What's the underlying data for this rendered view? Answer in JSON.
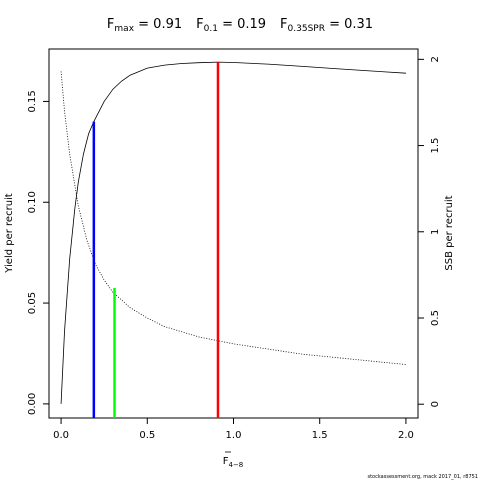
{
  "title": {
    "fmax": {
      "base": "F",
      "sub": "max",
      "rest": " = 0.91"
    },
    "f01": {
      "base": "F",
      "sub": "0.1",
      "rest": " = 0.19"
    },
    "f035": {
      "base": "F",
      "sub": "0.35SPR",
      "rest": " = 0.31"
    }
  },
  "footer": "stockassessment.org, mack  2017_01, r8751",
  "chart_data": {
    "type": "line",
    "xlabel": {
      "base": "F",
      "sub": "4−8"
    },
    "ylabel": "Yield per recruit",
    "y2label": "SSB per recruit",
    "xlim": [
      -0.07,
      2.07
    ],
    "ylim": [
      -0.007,
      0.176
    ],
    "y2lim": [
      -0.08,
      2.06
    ],
    "x_ticks": [
      0,
      0.5,
      1,
      1.5,
      2
    ],
    "x_tick_labels": [
      "0.0",
      "0.5",
      "1.0",
      "1.5",
      "2.0"
    ],
    "y_ticks": [
      0,
      0.05,
      0.1,
      0.15
    ],
    "y_tick_labels": [
      "0.00",
      "0.05",
      "0.10",
      "0.15"
    ],
    "y2_ticks": [
      0,
      0.5,
      1,
      1.5,
      2
    ],
    "y2_tick_labels": [
      "0",
      "0.5",
      "1",
      "1.5",
      "2"
    ],
    "series": [
      {
        "axis": "left",
        "style": "solid",
        "x": [
          0,
          0.02,
          0.05,
          0.08,
          0.1,
          0.13,
          0.16,
          0.19,
          0.25,
          0.3,
          0.35,
          0.4,
          0.5,
          0.6,
          0.7,
          0.8,
          0.91,
          1.0,
          1.2,
          1.4,
          1.6,
          1.8,
          2.0
        ],
        "y": [
          0,
          0.036,
          0.072,
          0.097,
          0.11,
          0.124,
          0.134,
          0.14,
          0.15,
          0.156,
          0.16,
          0.163,
          0.1665,
          0.168,
          0.1688,
          0.1692,
          0.1695,
          0.1693,
          0.1685,
          0.1674,
          0.1662,
          0.1651,
          0.164
        ]
      },
      {
        "axis": "right",
        "style": "dotted",
        "x": [
          0,
          0.02,
          0.05,
          0.1,
          0.15,
          0.2,
          0.25,
          0.3,
          0.4,
          0.5,
          0.6,
          0.7,
          0.8,
          0.9,
          1.0,
          1.2,
          1.4,
          1.6,
          1.8,
          2.0
        ],
        "y": [
          1.93,
          1.7,
          1.45,
          1.15,
          0.95,
          0.81,
          0.72,
          0.65,
          0.56,
          0.5,
          0.45,
          0.42,
          0.39,
          0.37,
          0.35,
          0.32,
          0.29,
          0.27,
          0.25,
          0.23
        ]
      }
    ],
    "reference_lines": [
      {
        "name": "F0.1",
        "x": 0.19,
        "y_top": 0.14,
        "color": "#0000ff"
      },
      {
        "name": "F0.35SPR",
        "x": 0.31,
        "y_top": 0.0575,
        "color": "#00ff00"
      },
      {
        "name": "Fmax",
        "x": 0.91,
        "y_top": 0.1695,
        "color": "#ff0000"
      }
    ]
  }
}
